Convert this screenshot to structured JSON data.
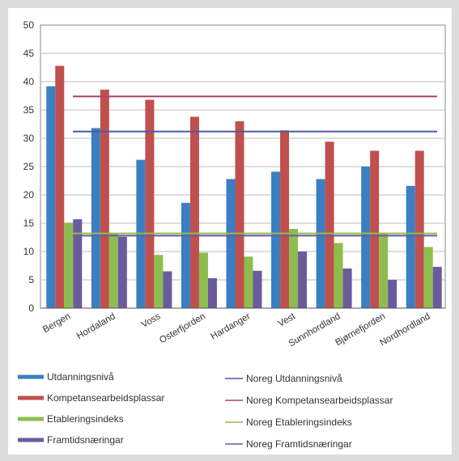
{
  "chart_data": {
    "type": "bar",
    "categories": [
      "Bergen",
      "Hordaland",
      "Voss",
      "Osterfjorden",
      "Hardanger",
      "Vest",
      "Sunnhordland",
      "Bjørnefjorden",
      "Nordhordland"
    ],
    "ylim": [
      0,
      50
    ],
    "yticks": [
      "0",
      "5",
      "10",
      "15",
      "20",
      "25",
      "30",
      "35",
      "40",
      "45",
      "50"
    ],
    "grid": true,
    "legend_position": "bottom",
    "series": [
      {
        "name": "Utdanningsnivå",
        "color": "#3a7fc1",
        "values": [
          39.2,
          31.8,
          26.2,
          18.6,
          22.8,
          24.1,
          22.8,
          25.0,
          21.6
        ]
      },
      {
        "name": "Kompetansearbeidsplassar",
        "color": "#c0504d",
        "values": [
          42.8,
          38.6,
          36.8,
          33.8,
          33.0,
          31.4,
          29.4,
          27.8,
          27.8
        ]
      },
      {
        "name": "Etableringsindeks",
        "color": "#8ebd4f",
        "values": [
          15.1,
          13.2,
          9.4,
          9.8,
          9.1,
          14.0,
          11.5,
          13.1,
          10.8
        ]
      },
      {
        "name": "Framtidsnæringar",
        "color": "#6a5a9e",
        "values": [
          15.7,
          12.6,
          6.5,
          5.3,
          6.6,
          10.0,
          7.0,
          5.0,
          7.3
        ]
      }
    ],
    "reference_lines": [
      {
        "name": "Noreg Utdanningsnivå",
        "color": "#4b58a6",
        "value": 31.2
      },
      {
        "name": "Noreg Kompetansearbeidsplassar",
        "color": "#a5446f",
        "value": 37.4
      },
      {
        "name": "Noreg Etableringsindeks",
        "color": "#8ebd4f",
        "value": 13.2
      },
      {
        "name": "Noreg Framtidsnæringar",
        "color": "#6a5a9e",
        "value": 12.8
      }
    ]
  }
}
